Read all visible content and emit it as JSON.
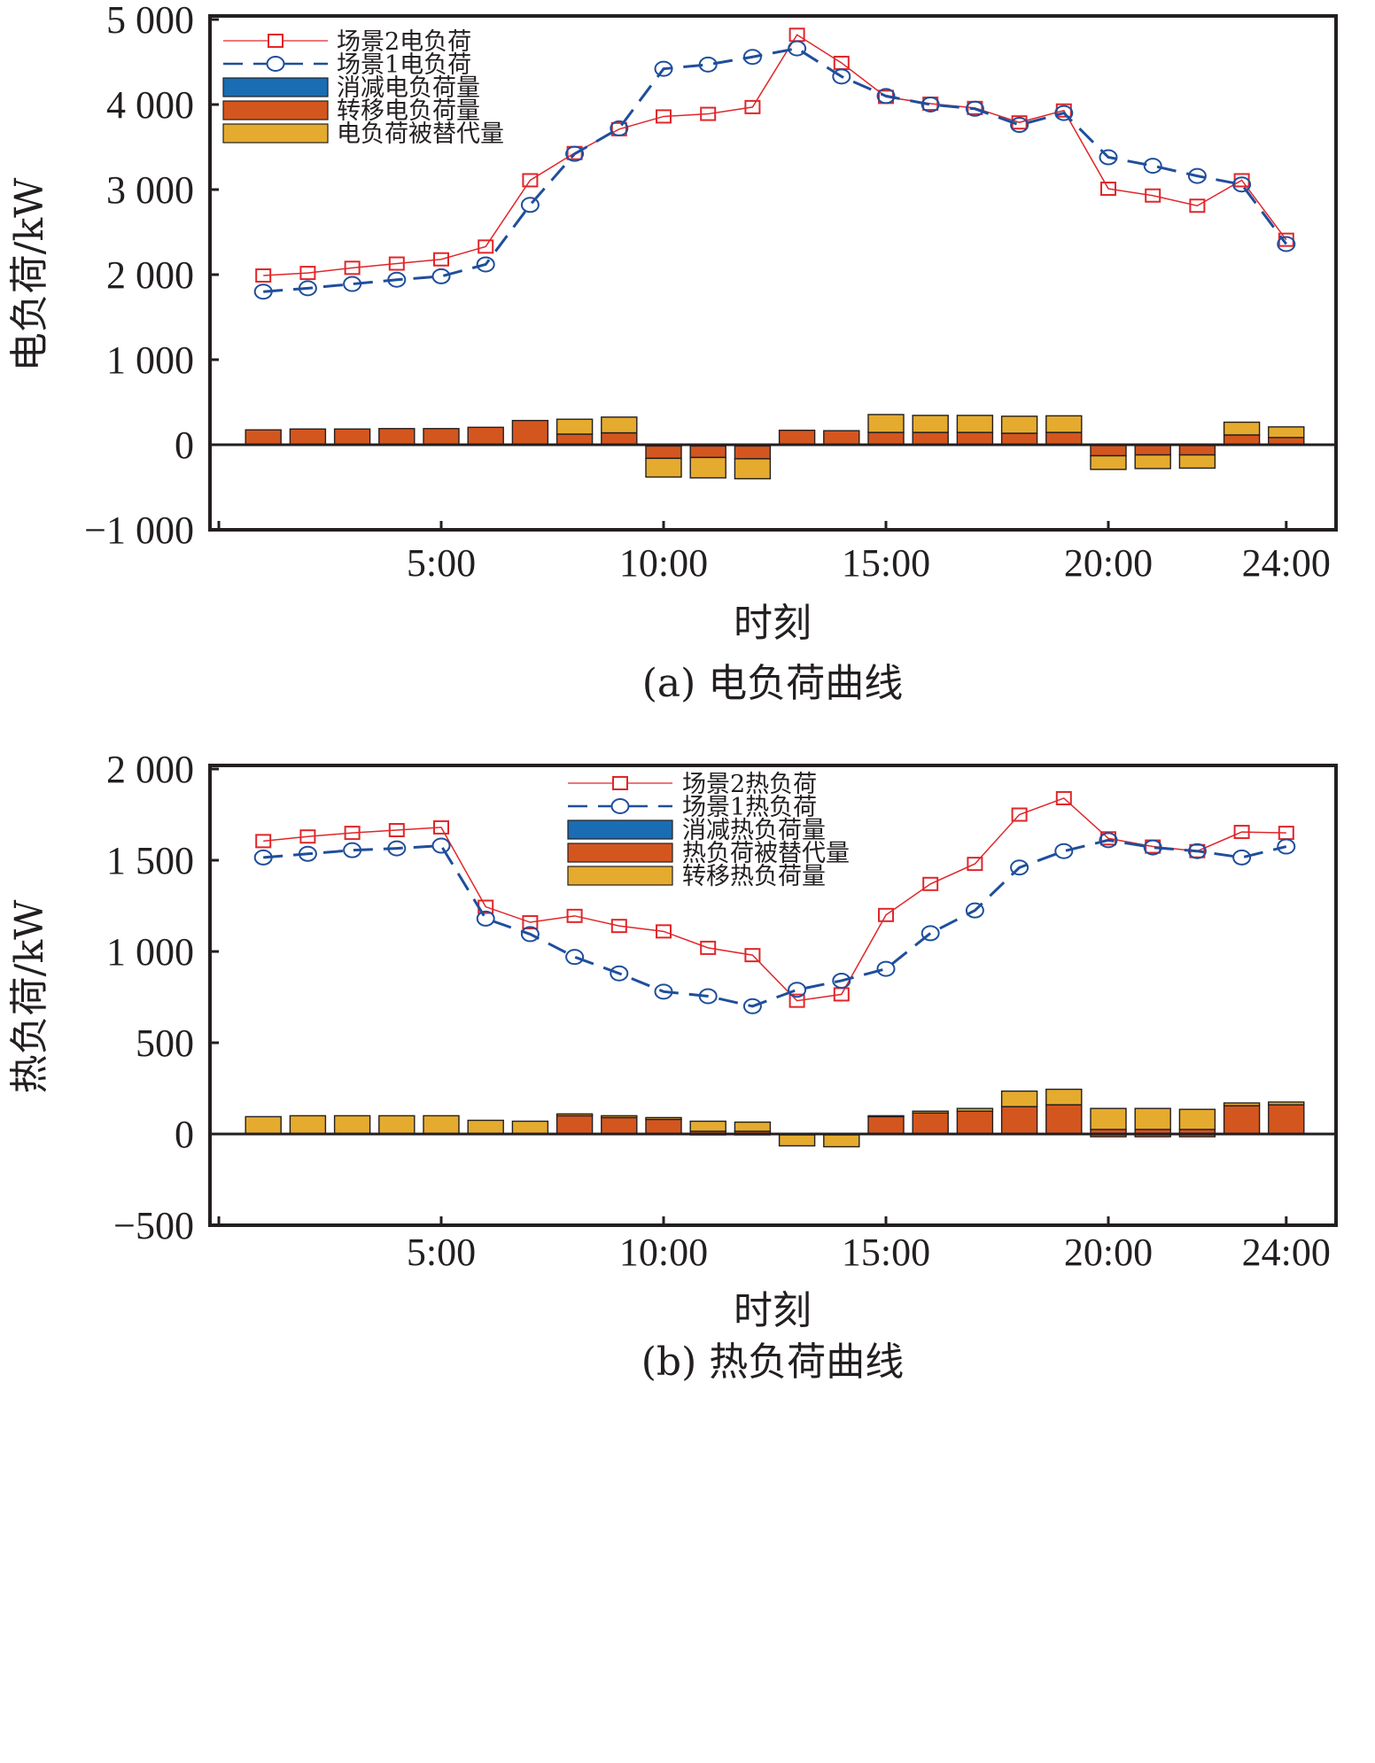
{
  "chart_data": [
    {
      "id": "a",
      "type": "bar+line",
      "caption": "(a) 电负荷曲线",
      "xlabel": "时刻",
      "ylabel": "电负荷/kW",
      "xlim": [
        0,
        25
      ],
      "ylim": [
        -1000,
        5000
      ],
      "yticks": [
        -1000,
        0,
        1000,
        2000,
        3000,
        4000,
        5000
      ],
      "ytick_labels": [
        "−1 000",
        "0",
        "1 000",
        "2 000",
        "3 000",
        "4 000",
        "5 000"
      ],
      "xticks": [
        5,
        10,
        15,
        20,
        24
      ],
      "xtick_labels": [
        "5:00",
        "10:00",
        "15:00",
        "20:00",
        "24:00"
      ],
      "grid": false,
      "legend_position": "top-left",
      "legend": [
        {
          "label": "场景2电负荷",
          "kind": "line",
          "series": "scene2"
        },
        {
          "label": "场景1电负荷",
          "kind": "line",
          "series": "scene1"
        },
        {
          "label": "消减电负荷量",
          "kind": "bar",
          "color": "#1a6db3"
        },
        {
          "label": "转移电负荷量",
          "kind": "bar",
          "color": "#d4561f"
        },
        {
          "label": "电负荷被替代量",
          "kind": "bar",
          "color": "#e5ab2e"
        }
      ],
      "x": [
        1,
        2,
        3,
        4,
        5,
        6,
        7,
        8,
        9,
        10,
        11,
        12,
        13,
        14,
        15,
        16,
        17,
        18,
        19,
        20,
        21,
        22,
        23,
        24
      ],
      "series": [
        {
          "name": "场景2电负荷",
          "key": "scene2",
          "color": "#e0262a",
          "marker": "square",
          "dash": "solid",
          "values": [
            1990,
            2020,
            2080,
            2130,
            2180,
            2330,
            3110,
            3430,
            3710,
            3860,
            3890,
            3970,
            4820,
            4490,
            4090,
            4010,
            3960,
            3790,
            3930,
            3010,
            2930,
            2810,
            3110,
            2410
          ]
        },
        {
          "name": "场景1电负荷",
          "key": "scene1",
          "color": "#1f4e9c",
          "marker": "circle",
          "dash": "dashed",
          "values": [
            1800,
            1840,
            1890,
            1940,
            1980,
            2120,
            2820,
            3420,
            3720,
            4420,
            4470,
            4560,
            4660,
            4330,
            4100,
            4000,
            3950,
            3760,
            3900,
            3380,
            3280,
            3160,
            3060,
            2360
          ]
        }
      ],
      "bars": {
        "colors": {
          "reduced": "#1a6db3",
          "shifted": "#d4561f",
          "substituted": "#e5ab2e"
        },
        "segments": [
          [
            {
              "type": "shifted",
              "from": 0,
              "to": 175
            }
          ],
          [
            {
              "type": "shifted",
              "from": 0,
              "to": 185
            }
          ],
          [
            {
              "type": "shifted",
              "from": 0,
              "to": 185
            }
          ],
          [
            {
              "type": "shifted",
              "from": 0,
              "to": 190
            }
          ],
          [
            {
              "type": "shifted",
              "from": 0,
              "to": 190
            }
          ],
          [
            {
              "type": "shifted",
              "from": 0,
              "to": 205
            }
          ],
          [
            {
              "type": "shifted",
              "from": 0,
              "to": 285
            }
          ],
          [
            {
              "type": "shifted",
              "from": 0,
              "to": 125
            },
            {
              "type": "substituted",
              "from": 125,
              "to": 300
            }
          ],
          [
            {
              "type": "shifted",
              "from": 0,
              "to": 140
            },
            {
              "type": "substituted",
              "from": 140,
              "to": 325
            }
          ],
          [
            {
              "type": "reduced",
              "from": 0,
              "to": -15
            },
            {
              "type": "shifted",
              "from": -15,
              "to": -160
            },
            {
              "type": "substituted",
              "from": -160,
              "to": -380
            }
          ],
          [
            {
              "type": "reduced",
              "from": 0,
              "to": -15
            },
            {
              "type": "shifted",
              "from": -15,
              "to": -150
            },
            {
              "type": "substituted",
              "from": -150,
              "to": -390
            }
          ],
          [
            {
              "type": "reduced",
              "from": 0,
              "to": -15
            },
            {
              "type": "shifted",
              "from": -15,
              "to": -165
            },
            {
              "type": "substituted",
              "from": -165,
              "to": -400
            }
          ],
          [
            {
              "type": "shifted",
              "from": 0,
              "to": 170
            }
          ],
          [
            {
              "type": "shifted",
              "from": 0,
              "to": 165
            }
          ],
          [
            {
              "type": "shifted",
              "from": 0,
              "to": 145
            },
            {
              "type": "substituted",
              "from": 145,
              "to": 355
            }
          ],
          [
            {
              "type": "shifted",
              "from": 0,
              "to": 145
            },
            {
              "type": "substituted",
              "from": 145,
              "to": 345
            }
          ],
          [
            {
              "type": "shifted",
              "from": 0,
              "to": 145
            },
            {
              "type": "substituted",
              "from": 145,
              "to": 345
            }
          ],
          [
            {
              "type": "shifted",
              "from": 0,
              "to": 135
            },
            {
              "type": "substituted",
              "from": 135,
              "to": 335
            }
          ],
          [
            {
              "type": "shifted",
              "from": 0,
              "to": 145
            },
            {
              "type": "substituted",
              "from": 145,
              "to": 340
            }
          ],
          [
            {
              "type": "reduced",
              "from": 0,
              "to": -10
            },
            {
              "type": "shifted",
              "from": -10,
              "to": -130
            },
            {
              "type": "substituted",
              "from": -130,
              "to": -290
            }
          ],
          [
            {
              "type": "reduced",
              "from": 0,
              "to": -10
            },
            {
              "type": "shifted",
              "from": -10,
              "to": -120
            },
            {
              "type": "substituted",
              "from": -120,
              "to": -280
            }
          ],
          [
            {
              "type": "reduced",
              "from": 0,
              "to": -10
            },
            {
              "type": "shifted",
              "from": -10,
              "to": -120
            },
            {
              "type": "substituted",
              "from": -120,
              "to": -275
            }
          ],
          [
            {
              "type": "shifted",
              "from": 0,
              "to": 115
            },
            {
              "type": "substituted",
              "from": 115,
              "to": 265
            }
          ],
          [
            {
              "type": "shifted",
              "from": 0,
              "to": 85
            },
            {
              "type": "substituted",
              "from": 85,
              "to": 210
            }
          ]
        ]
      }
    },
    {
      "id": "b",
      "type": "bar+line",
      "caption": "(b) 热负荷曲线",
      "xlabel": "时刻",
      "ylabel": "热负荷/kW",
      "xlim": [
        0,
        25
      ],
      "ylim": [
        -500,
        2000
      ],
      "yticks": [
        -500,
        0,
        500,
        1000,
        1500,
        2000
      ],
      "ytick_labels": [
        "−500",
        "0",
        "500",
        "1 000",
        "1 500",
        "2 000"
      ],
      "xticks": [
        5,
        10,
        15,
        20,
        24
      ],
      "xtick_labels": [
        "5:00",
        "10:00",
        "15:00",
        "20:00",
        "24:00"
      ],
      "grid": false,
      "legend_position": "top-center",
      "legend": [
        {
          "label": "场景2热负荷",
          "kind": "line",
          "series": "scene2"
        },
        {
          "label": "场景1热负荷",
          "kind": "line",
          "series": "scene1"
        },
        {
          "label": "消减热负荷量",
          "kind": "bar",
          "color": "#1a6db3"
        },
        {
          "label": "热负荷被替代量",
          "kind": "bar",
          "color": "#d4561f"
        },
        {
          "label": "转移热负荷量",
          "kind": "bar",
          "color": "#e5ab2e"
        }
      ],
      "x": [
        1,
        2,
        3,
        4,
        5,
        6,
        7,
        8,
        9,
        10,
        11,
        12,
        13,
        14,
        15,
        16,
        17,
        18,
        19,
        20,
        21,
        22,
        23,
        24
      ],
      "series": [
        {
          "name": "场景2热负荷",
          "key": "scene2",
          "color": "#e0262a",
          "marker": "square",
          "dash": "solid",
          "values": [
            1605,
            1630,
            1650,
            1665,
            1680,
            1245,
            1160,
            1195,
            1140,
            1110,
            1020,
            980,
            730,
            765,
            1200,
            1370,
            1480,
            1750,
            1840,
            1620,
            1575,
            1550,
            1655,
            1650
          ]
        },
        {
          "name": "场景1热负荷",
          "key": "scene1",
          "color": "#1f4e9c",
          "marker": "circle",
          "dash": "dashed",
          "values": [
            1515,
            1535,
            1555,
            1565,
            1580,
            1180,
            1095,
            970,
            880,
            780,
            755,
            700,
            790,
            840,
            905,
            1100,
            1225,
            1460,
            1550,
            1610,
            1570,
            1550,
            1515,
            1575
          ]
        }
      ],
      "bars": {
        "colors": {
          "reduced": "#1a6db3",
          "substituted": "#d4561f",
          "shifted": "#e5ab2e"
        },
        "segments": [
          [
            {
              "type": "shifted",
              "from": 0,
              "to": 95
            }
          ],
          [
            {
              "type": "shifted",
              "from": 0,
              "to": 100
            }
          ],
          [
            {
              "type": "shifted",
              "from": 0,
              "to": 100
            }
          ],
          [
            {
              "type": "shifted",
              "from": 0,
              "to": 100
            }
          ],
          [
            {
              "type": "shifted",
              "from": 0,
              "to": 100
            }
          ],
          [
            {
              "type": "shifted",
              "from": 0,
              "to": 75
            }
          ],
          [
            {
              "type": "shifted",
              "from": 0,
              "to": 70
            }
          ],
          [
            {
              "type": "substituted",
              "from": 0,
              "to": 100
            },
            {
              "type": "shifted",
              "from": 100,
              "to": 110
            }
          ],
          [
            {
              "type": "substituted",
              "from": 0,
              "to": 90
            },
            {
              "type": "shifted",
              "from": 90,
              "to": 100
            }
          ],
          [
            {
              "type": "substituted",
              "from": 0,
              "to": 80
            },
            {
              "type": "shifted",
              "from": 80,
              "to": 90
            }
          ],
          [
            {
              "type": "substituted",
              "from": -5,
              "to": 15
            },
            {
              "type": "shifted",
              "from": 15,
              "to": 70
            }
          ],
          [
            {
              "type": "substituted",
              "from": -5,
              "to": 15
            },
            {
              "type": "shifted",
              "from": 15,
              "to": 65
            }
          ],
          [
            {
              "type": "reduced",
              "from": 0,
              "to": -5
            },
            {
              "type": "shifted",
              "from": -5,
              "to": -65
            }
          ],
          [
            {
              "type": "reduced",
              "from": 0,
              "to": -5
            },
            {
              "type": "shifted",
              "from": -5,
              "to": -70
            }
          ],
          [
            {
              "type": "substituted",
              "from": 0,
              "to": 95
            },
            {
              "type": "shifted",
              "from": 95,
              "to": 100
            }
          ],
          [
            {
              "type": "substituted",
              "from": 0,
              "to": 115
            },
            {
              "type": "shifted",
              "from": 115,
              "to": 125
            }
          ],
          [
            {
              "type": "substituted",
              "from": 0,
              "to": 125
            },
            {
              "type": "shifted",
              "from": 125,
              "to": 140
            }
          ],
          [
            {
              "type": "substituted",
              "from": 0,
              "to": 150
            },
            {
              "type": "shifted",
              "from": 150,
              "to": 235
            }
          ],
          [
            {
              "type": "substituted",
              "from": 0,
              "to": 160
            },
            {
              "type": "shifted",
              "from": 160,
              "to": 245
            }
          ],
          [
            {
              "type": "substituted",
              "from": -15,
              "to": 25
            },
            {
              "type": "shifted",
              "from": 25,
              "to": 140
            }
          ],
          [
            {
              "type": "substituted",
              "from": -15,
              "to": 25
            },
            {
              "type": "shifted",
              "from": 25,
              "to": 140
            }
          ],
          [
            {
              "type": "substituted",
              "from": -15,
              "to": 25
            },
            {
              "type": "shifted",
              "from": 25,
              "to": 135
            }
          ],
          [
            {
              "type": "substituted",
              "from": 0,
              "to": 155
            },
            {
              "type": "shifted",
              "from": 155,
              "to": 170
            }
          ],
          [
            {
              "type": "substituted",
              "from": 0,
              "to": 160
            },
            {
              "type": "shifted",
              "from": 160,
              "to": 175
            }
          ]
        ]
      }
    }
  ]
}
